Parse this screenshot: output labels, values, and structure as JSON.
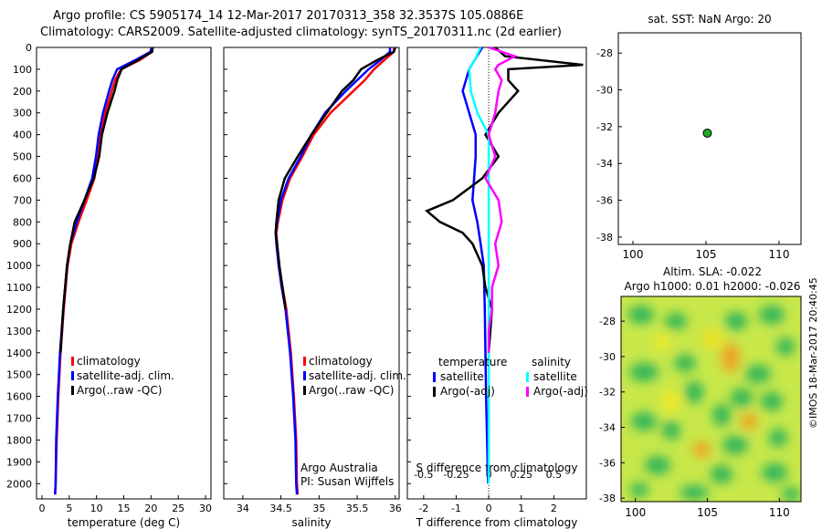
{
  "header": {
    "title_line1": "Argo profile: CS 5905174_14 12-Mar-2017 20170313_358 32.3537S 105.0886E",
    "title_line2": "Climatology: CARS2009. Satellite-adjusted climatology: synTS_20170311.nc (2d earlier)"
  },
  "stamp": "©IMOS 18-Mar-2017 20:40:45",
  "colors": {
    "climatology": "#ff0000",
    "satellite": "#0000ff",
    "argo": "#000000",
    "salinity_satellite": "#00ffff",
    "salinity_argo": "#ff00ff",
    "marker": "#22aa22"
  },
  "chart_data": [
    {
      "type": "line",
      "xlabel": "temperature (deg C)",
      "ylabel": "",
      "xlim": [
        -1,
        31
      ],
      "ylim": [
        2070,
        0
      ],
      "xticks": [
        0,
        5,
        10,
        15,
        20,
        25,
        30
      ],
      "yticks": [
        0,
        100,
        200,
        300,
        400,
        500,
        600,
        700,
        800,
        900,
        1000,
        1100,
        1200,
        1300,
        1400,
        1500,
        1600,
        1700,
        1800,
        1900,
        2000
      ],
      "legend": [
        "climatology",
        "satellite-adj. clim.",
        "Argo(..raw -QC)"
      ],
      "series": [
        {
          "name": "climatology",
          "color": "#ff0000",
          "pressure": [
            0,
            20,
            60,
            100,
            150,
            200,
            300,
            400,
            500,
            600,
            700,
            800,
            900,
            1000,
            1200,
            1400,
            1600,
            1800,
            2000,
            2050
          ],
          "values": [
            20.3,
            20.2,
            17.8,
            14.5,
            13.4,
            12.8,
            11.6,
            10.8,
            10.3,
            9.6,
            8.2,
            6.7,
            5.4,
            4.7,
            4.0,
            3.4,
            3.0,
            2.7,
            2.5,
            2.4
          ]
        },
        {
          "name": "satellite-adj. clim.",
          "color": "#0000ff",
          "pressure": [
            0,
            20,
            60,
            100,
            150,
            200,
            300,
            400,
            500,
            600,
            700,
            800,
            900,
            1000,
            1200,
            1400,
            1600,
            1800,
            2000,
            2050
          ],
          "values": [
            20.1,
            19.9,
            17.0,
            13.8,
            12.9,
            12.3,
            11.2,
            10.4,
            9.9,
            9.2,
            7.8,
            6.4,
            5.2,
            4.6,
            3.9,
            3.3,
            2.9,
            2.6,
            2.5,
            2.4
          ]
        },
        {
          "name": "Argo(..raw -QC)",
          "color": "#000000",
          "pressure": [
            0,
            20,
            60,
            100,
            150,
            200,
            300,
            400,
            500,
            600,
            700,
            800,
            900,
            1000,
            1200,
            1400
          ],
          "values": [
            20.3,
            20.2,
            17.5,
            14.6,
            13.8,
            13.3,
            12.0,
            11.0,
            10.5,
            9.5,
            7.8,
            6.0,
            5.2,
            4.6,
            3.9,
            3.4
          ]
        }
      ],
      "footer_text": []
    },
    {
      "type": "line",
      "xlabel": "salinity",
      "ylabel": "",
      "xlim": [
        33.75,
        36.05
      ],
      "ylim": [
        2070,
        0
      ],
      "xticks": [
        34,
        34.5,
        35,
        35.5,
        36
      ],
      "legend": [
        "climatology",
        "satellite-adj. clim.",
        "Argo(..raw -QC)"
      ],
      "series": [
        {
          "name": "climatology",
          "color": "#ff0000",
          "pressure": [
            0,
            20,
            60,
            100,
            150,
            200,
            300,
            400,
            500,
            600,
            700,
            800,
            850,
            900,
            1000,
            1100,
            1200,
            1400,
            1600,
            1800,
            2000,
            2050
          ],
          "values": [
            35.98,
            35.98,
            35.85,
            35.72,
            35.6,
            35.45,
            35.15,
            34.93,
            34.78,
            34.62,
            34.52,
            34.46,
            34.44,
            34.45,
            34.47,
            34.52,
            34.57,
            34.63,
            34.67,
            34.7,
            34.71,
            34.72
          ]
        },
        {
          "name": "satellite-adj. clim.",
          "color": "#0000ff",
          "pressure": [
            0,
            20,
            60,
            100,
            150,
            200,
            300,
            400,
            500,
            600,
            700,
            800,
            850,
            900,
            1000,
            1100,
            1200,
            1400,
            1600,
            1800,
            2000,
            2050
          ],
          "values": [
            35.93,
            35.93,
            35.8,
            35.65,
            35.5,
            35.35,
            35.08,
            34.9,
            34.76,
            34.6,
            34.5,
            34.45,
            34.43,
            34.44,
            34.47,
            34.51,
            34.56,
            34.62,
            34.66,
            34.69,
            34.7,
            34.71
          ]
        },
        {
          "name": "Argo(..raw -QC)",
          "color": "#000000",
          "pressure": [
            0,
            20,
            60,
            100,
            150,
            200,
            300,
            400,
            500,
            600,
            700,
            800,
            850,
            900,
            1000,
            1100,
            1200
          ],
          "values": [
            36.0,
            35.98,
            35.75,
            35.55,
            35.45,
            35.3,
            35.1,
            34.9,
            34.72,
            34.55,
            34.47,
            34.44,
            34.43,
            34.45,
            34.48,
            34.52,
            34.56
          ]
        }
      ],
      "footer_text": [
        "Argo Australia",
        "PI: Susan Wijffels"
      ]
    },
    {
      "type": "line",
      "xlabel": "T difference from climatology",
      "top_xlabel": "S difference from climatology",
      "xlim": [
        -2.5,
        3.0
      ],
      "ylim": [
        2070,
        0
      ],
      "xticks": [
        -2,
        -1,
        0,
        1,
        2
      ],
      "top_xticks": [
        "-0.5",
        "-0.25",
        "0",
        "0.25",
        "0.5"
      ],
      "legend_title_temperature": "temperature",
      "legend_title_salinity": "salinity",
      "legend": [
        "satellite",
        "Argo(-adj)",
        "satellite",
        "Argo(-adj)"
      ],
      "series": [
        {
          "name": "satellite",
          "group": "temperature",
          "color": "#0000ff",
          "pressure": [
            0,
            50,
            100,
            200,
            300,
            400,
            500,
            600,
            700,
            800,
            900,
            1000,
            1200,
            1400,
            1600,
            1800,
            2000
          ],
          "values": [
            -0.2,
            -0.4,
            -0.6,
            -0.8,
            -0.6,
            -0.4,
            -0.4,
            -0.45,
            -0.5,
            -0.35,
            -0.25,
            -0.15,
            -0.12,
            -0.1,
            -0.08,
            -0.05,
            -0.02
          ]
        },
        {
          "name": "Argo(-adj)",
          "group": "temperature",
          "color": "#000000",
          "pressure": [
            0,
            40,
            80,
            100,
            150,
            200,
            300,
            400,
            500,
            600,
            700,
            750,
            800,
            850,
            900,
            1000,
            1100,
            1200,
            1300,
            1400
          ],
          "values": [
            0.2,
            0.5,
            2.9,
            0.6,
            0.6,
            0.9,
            0.3,
            -0.1,
            0.3,
            -0.2,
            -1.1,
            -1.9,
            -1.5,
            -0.8,
            -0.5,
            -0.2,
            -0.1,
            0.1,
            0.05,
            0.0
          ]
        },
        {
          "name": "satellite",
          "group": "salinity",
          "color": "#00ffff",
          "pressure": [
            0,
            50,
            100,
            200,
            300,
            400,
            500,
            700,
            900,
            1100,
            1400,
            1700,
            2000
          ],
          "values": [
            -0.25,
            -0.4,
            -0.6,
            -0.55,
            -0.35,
            0.0,
            0.0,
            0.0,
            0.0,
            0.0,
            0.0,
            0.0,
            0.0
          ]
        },
        {
          "name": "Argo(-adj)",
          "group": "salinity",
          "color": "#ff00ff",
          "pressure": [
            0,
            40,
            80,
            100,
            150,
            200,
            300,
            400,
            500,
            600,
            700,
            800,
            900,
            1000,
            1100,
            1200,
            1300,
            1400
          ],
          "values": [
            0.0,
            0.8,
            0.3,
            0.2,
            0.4,
            0.3,
            0.2,
            0.0,
            0.2,
            -0.1,
            0.3,
            0.4,
            0.2,
            0.3,
            0.1,
            0.1,
            0.0,
            0.0
          ]
        }
      ],
      "footer_text": []
    },
    {
      "type": "scatter",
      "title": "sat. SST: NaN Argo: 20",
      "xlim": [
        99,
        111.5
      ],
      "ylim": [
        -38.4,
        -26.9
      ],
      "xticks": [
        100,
        105,
        110
      ],
      "yticks": [
        -28,
        -30,
        -32,
        -34,
        -36,
        -38
      ],
      "points": [
        {
          "x": 105.09,
          "y": -32.35
        }
      ]
    },
    {
      "type": "heatmap",
      "title_line1": "Altim. SLA: -0.022",
      "title_line2": "Argo h1000: 0.01 h2000: -0.026",
      "xlim": [
        99,
        111.5
      ],
      "ylim": [
        -38.2,
        -26.6
      ],
      "xticks": [
        100,
        105,
        110
      ],
      "yticks": [
        -28,
        -30,
        -32,
        -34,
        -36,
        -38
      ]
    }
  ]
}
